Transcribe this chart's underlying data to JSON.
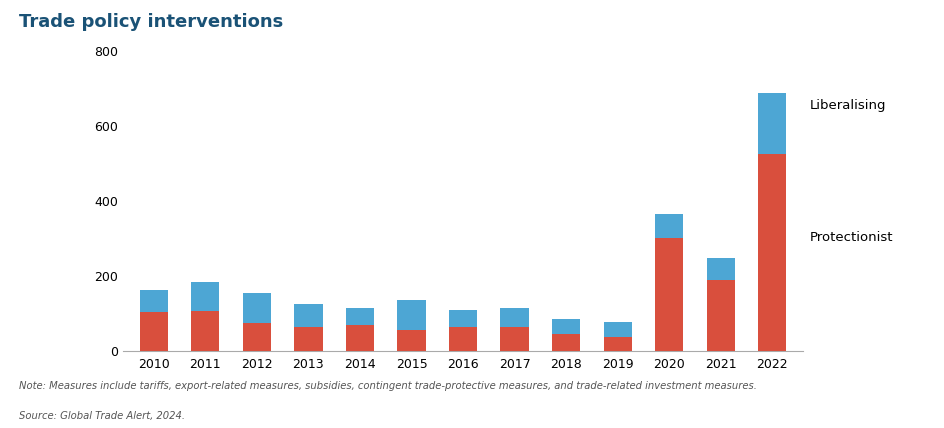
{
  "title": "Trade policy interventions",
  "years": [
    "2010",
    "2011",
    "2012",
    "2013",
    "2014",
    "2015",
    "2016",
    "2017",
    "2018",
    "2019",
    "2020",
    "2021",
    "2022"
  ],
  "protectionist": [
    105,
    107,
    75,
    65,
    68,
    57,
    63,
    63,
    45,
    38,
    302,
    190,
    525
  ],
  "liberalising": [
    57,
    78,
    80,
    60,
    48,
    80,
    47,
    52,
    40,
    38,
    65,
    57,
    165
  ],
  "protectionist_color": "#d94f3d",
  "liberalising_color": "#4da6d4",
  "title_color": "#1a5276",
  "ylim": [
    0,
    800
  ],
  "yticks": [
    0,
    200,
    400,
    600,
    800
  ],
  "note": "Note: Measures include tariffs, export-related measures, subsidies, contingent trade-protective measures, and trade-related investment measures.",
  "source": "Source: Global Trade Alert, 2024.",
  "legend_liberalising": "Liberalising",
  "legend_protectionist": "Protectionist",
  "background_color": "#ffffff",
  "bar_width": 0.55
}
